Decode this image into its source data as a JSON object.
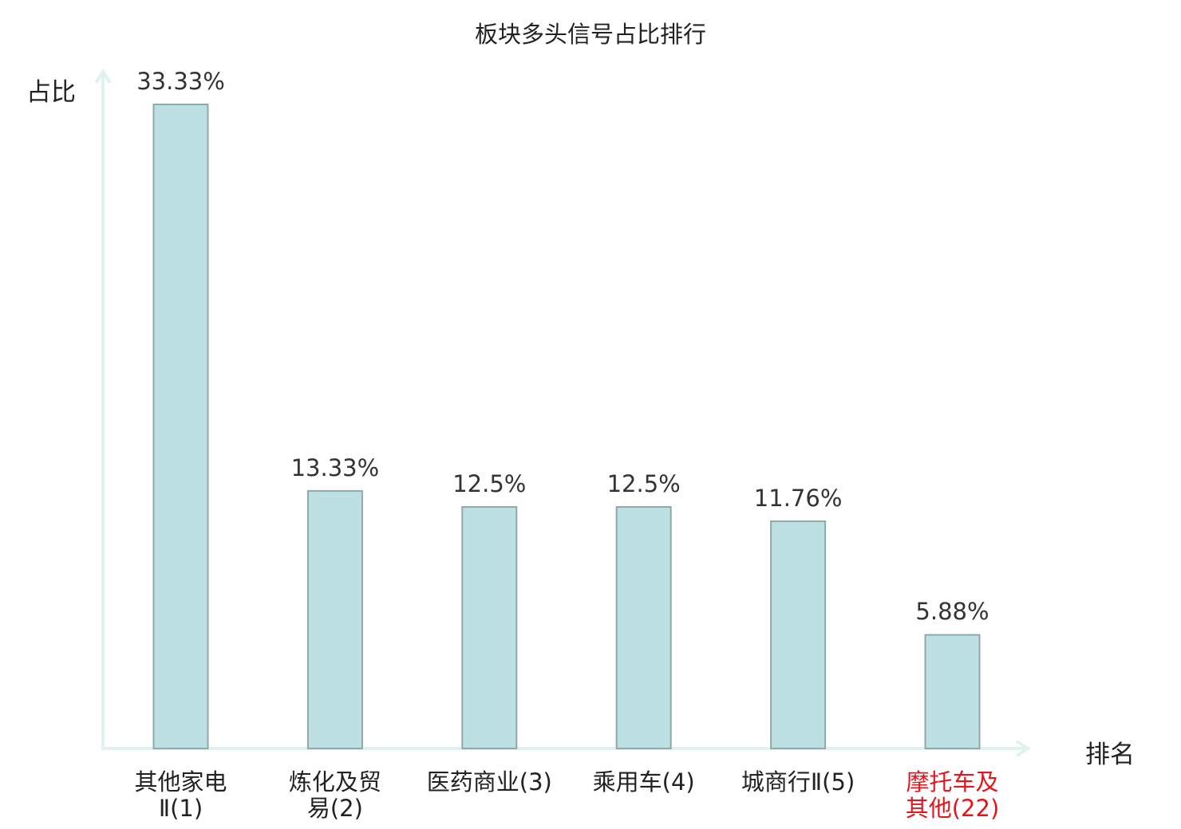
{
  "chart_data": {
    "type": "bar",
    "title": "板块多头信号占比排行",
    "ylabel": "占比",
    "xlabel": "排名",
    "ylim": [
      0,
      35
    ],
    "grid": false,
    "categories": [
      {
        "name": "其他家电Ⅱ",
        "rank": "(1)",
        "line1": "其他家电",
        "line2": "Ⅱ(1)",
        "highlight": false
      },
      {
        "name": "炼化及贸易",
        "rank": "(2)",
        "line1": "炼化及贸",
        "line2": "易(2)",
        "highlight": false
      },
      {
        "name": "医药商业",
        "rank": "(3)",
        "line1": "医药商业(3)",
        "line2": "",
        "highlight": false
      },
      {
        "name": "乘用车",
        "rank": "(4)",
        "line1": "乘用车(4)",
        "line2": "",
        "highlight": false
      },
      {
        "name": "城商行Ⅱ",
        "rank": "(5)",
        "line1": "城商行Ⅱ(5)",
        "line2": "",
        "highlight": false
      },
      {
        "name": "摩托车及其他",
        "rank": "(22)",
        "line1": "摩托车及",
        "line2": "其他(22)",
        "highlight": true
      }
    ],
    "values": [
      33.33,
      13.33,
      12.5,
      12.5,
      11.76,
      5.88
    ],
    "value_labels": [
      "33.33%",
      "13.33%",
      "12.5%",
      "12.5%",
      "11.76%",
      "5.88%"
    ]
  },
  "colors": {
    "bar_fill": "#bde0e3",
    "bar_stroke": "#8fa8aa",
    "axis": "#e0f2ef",
    "highlight_text": "#e8141c",
    "normal_text": "#222222"
  }
}
